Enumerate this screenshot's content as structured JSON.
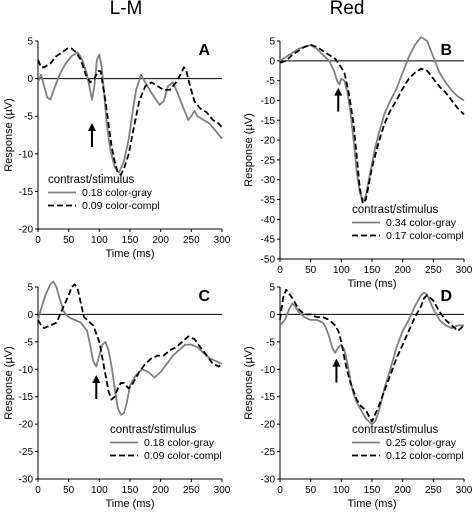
{
  "column_titles": [
    "L-M",
    "Red"
  ],
  "chart_data": [
    {
      "type": "line",
      "panel_label": "A",
      "xlabel": "Time (ms)",
      "ylabel": "Response (µV)",
      "xlim": [
        0,
        300
      ],
      "ylim": [
        -20,
        5
      ],
      "xticks": [
        0,
        50,
        100,
        150,
        200,
        250,
        300
      ],
      "yticks": [
        5,
        0,
        -5,
        -10,
        -15,
        -20
      ],
      "legend_title": "contrast/stimulus",
      "legend_position": "bottom-left",
      "arrow_at": [
        88,
        -5.5
      ],
      "series": [
        {
          "name": "0.18 color-gray",
          "style": "solid",
          "color": "#808080",
          "x": [
            0,
            5,
            10,
            15,
            20,
            28,
            35,
            45,
            55,
            65,
            72,
            80,
            85,
            88,
            92,
            96,
            100,
            104,
            108,
            112,
            118,
            125,
            132,
            140,
            148,
            155,
            160,
            168,
            175,
            182,
            190,
            198,
            205,
            212,
            220,
            228,
            235,
            240,
            245,
            250,
            255,
            260,
            270,
            280,
            290,
            300
          ],
          "y": [
            -0.5,
            0.5,
            -1,
            -2.5,
            -2.8,
            -1,
            0.5,
            2,
            3,
            3.5,
            2.5,
            0.5,
            -1.5,
            -2.8,
            -1,
            2.5,
            3.2,
            1.5,
            -2,
            -6,
            -9.5,
            -11.8,
            -12.5,
            -11,
            -8,
            -4,
            -1.5,
            0.5,
            -0.5,
            -1.5,
            -2.5,
            -3.5,
            -3,
            -1,
            -0.5,
            -2,
            -3.5,
            -4.5,
            -5.5,
            -5,
            -4.3,
            -5,
            -5.5,
            -6,
            -7,
            -8
          ]
        },
        {
          "name": "0.09 color-compl",
          "style": "dashed",
          "color": "#000000",
          "x": [
            0,
            5,
            10,
            20,
            30,
            40,
            48,
            55,
            62,
            70,
            78,
            85,
            92,
            98,
            102,
            106,
            110,
            115,
            120,
            125,
            130,
            135,
            140,
            148,
            155,
            165,
            175,
            185,
            195,
            205,
            215,
            225,
            232,
            238,
            242,
            248,
            255,
            265,
            275,
            285,
            295,
            300
          ],
          "y": [
            2.5,
            1.5,
            1.5,
            2,
            3,
            3.5,
            4,
            4,
            3.5,
            2.5,
            0.5,
            -0.5,
            0,
            1,
            1,
            -1,
            -3,
            -6,
            -9,
            -11,
            -12.5,
            -12.8,
            -12,
            -10,
            -7,
            -3,
            -1,
            -0.5,
            -1,
            -1.5,
            -1.5,
            -0.5,
            0.5,
            1.5,
            1,
            -1,
            -3,
            -4,
            -4.5,
            -5.5,
            -6,
            -6.5
          ]
        }
      ]
    },
    {
      "type": "line",
      "panel_label": "B",
      "xlabel": "Time (ms)",
      "ylabel": "Response (µV)",
      "xlim": [
        0,
        300
      ],
      "ylim": [
        -50,
        5
      ],
      "xticks": [
        0,
        50,
        100,
        150,
        200,
        250,
        300
      ],
      "yticks": [
        5,
        0,
        -5,
        -10,
        -15,
        -20,
        -25,
        -30,
        -35,
        -40,
        -45,
        -50
      ],
      "legend_title": "contrast/stimulus",
      "legend_position": "bottom-right",
      "arrow_at": [
        95,
        -6
      ],
      "series": [
        {
          "name": "0.34 color-gray",
          "style": "solid",
          "color": "#808080",
          "x": [
            0,
            10,
            20,
            30,
            40,
            50,
            60,
            70,
            80,
            88,
            93,
            97,
            100,
            105,
            110,
            115,
            120,
            125,
            130,
            135,
            140,
            145,
            150,
            155,
            160,
            170,
            180,
            190,
            200,
            210,
            220,
            230,
            240,
            250,
            260,
            270,
            280,
            290,
            300
          ],
          "y": [
            0,
            1,
            2,
            3,
            3.5,
            4,
            3,
            1.5,
            0,
            -2.5,
            -5,
            -6,
            -4.5,
            -5,
            -8,
            -13,
            -20,
            -28,
            -33,
            -35.5,
            -34,
            -30,
            -26,
            -22,
            -19,
            -13.5,
            -10,
            -7,
            -3,
            1,
            4,
            6,
            5,
            1,
            -3,
            -5.5,
            -7.5,
            -9,
            -10
          ]
        },
        {
          "name": "0.17 color-compl",
          "style": "dashed",
          "color": "#000000",
          "x": [
            0,
            10,
            20,
            30,
            40,
            50,
            60,
            70,
            80,
            90,
            97,
            105,
            112,
            120,
            125,
            130,
            135,
            140,
            145,
            150,
            160,
            170,
            180,
            190,
            200,
            210,
            220,
            230,
            240,
            250,
            260,
            270,
            280,
            290,
            300
          ],
          "y": [
            -0.5,
            0,
            1.5,
            2.5,
            3.5,
            4,
            3.5,
            2.5,
            1.5,
            0.5,
            -1,
            -3,
            -8,
            -16,
            -24,
            -32,
            -36,
            -35,
            -31,
            -27,
            -21,
            -16,
            -12.5,
            -10,
            -7,
            -4.5,
            -3,
            -2,
            -2.5,
            -4.5,
            -6.5,
            -8,
            -10,
            -12,
            -13.5
          ]
        }
      ]
    },
    {
      "type": "line",
      "panel_label": "C",
      "xlabel": "Time (ms)",
      "ylabel": "Response (µV)",
      "xlim": [
        0,
        300
      ],
      "ylim": [
        -30,
        5
      ],
      "xticks": [
        0,
        50,
        100,
        150,
        200,
        250,
        300
      ],
      "yticks": [
        5,
        0,
        -5,
        -10,
        -15,
        -20,
        -25,
        -30
      ],
      "legend_title": "contrast/stimulus",
      "legend_position": "bottom-right",
      "arrow_at": [
        95,
        -10.5
      ],
      "series": [
        {
          "name": "0.18 color-gray",
          "style": "solid",
          "color": "#808080",
          "x": [
            0,
            5,
            12,
            20,
            25,
            30,
            35,
            42,
            50,
            60,
            70,
            80,
            85,
            90,
            95,
            100,
            105,
            110,
            115,
            120,
            125,
            130,
            135,
            140,
            145,
            150,
            160,
            170,
            180,
            190,
            200,
            210,
            220,
            230,
            240,
            250,
            260,
            270,
            280,
            290,
            300
          ],
          "y": [
            -1,
            1,
            3.5,
            5.5,
            6,
            5,
            3,
            0.5,
            -0.5,
            -1,
            -1.5,
            -3,
            -5.5,
            -8.5,
            -9.5,
            -7.5,
            -5.5,
            -5,
            -6.5,
            -9.5,
            -13.5,
            -17,
            -18.3,
            -18,
            -16,
            -13,
            -11,
            -10,
            -10.5,
            -11.5,
            -10.5,
            -9,
            -7.5,
            -6.5,
            -5.5,
            -5.5,
            -6,
            -7,
            -8,
            -8.5,
            -9
          ]
        },
        {
          "name": "0.09 color-compl",
          "style": "dashed",
          "color": "#000000",
          "x": [
            0,
            5,
            10,
            20,
            30,
            40,
            50,
            55,
            60,
            65,
            70,
            75,
            80,
            85,
            90,
            95,
            100,
            105,
            110,
            115,
            120,
            125,
            130,
            135,
            140,
            148,
            155,
            165,
            175,
            185,
            195,
            205,
            215,
            225,
            235,
            245,
            255,
            265,
            275,
            285,
            295,
            300
          ],
          "y": [
            -1,
            -2,
            -2.5,
            -2,
            -1.5,
            1,
            3.5,
            5,
            5.5,
            4.5,
            2,
            -0.5,
            -1,
            -1.5,
            -2,
            -3.5,
            -5,
            -8,
            -11,
            -14,
            -15.5,
            -15,
            -13.5,
            -12.5,
            -12.5,
            -13.5,
            -12.5,
            -10.5,
            -9,
            -8,
            -7.5,
            -7.5,
            -6.5,
            -6,
            -5,
            -4,
            -4.5,
            -6,
            -7.5,
            -9,
            -9.5,
            -9
          ]
        }
      ]
    },
    {
      "type": "line",
      "panel_label": "D",
      "xlabel": "Time (ms)",
      "ylabel": "Response (µV)",
      "xlim": [
        0,
        300
      ],
      "ylim": [
        -30,
        5
      ],
      "xticks": [
        0,
        50,
        100,
        150,
        200,
        250,
        300
      ],
      "yticks": [
        5,
        0,
        -5,
        -10,
        -15,
        -20,
        -25,
        -30
      ],
      "legend_title": "contrast/stimulus",
      "legend_position": "bottom-right",
      "arrow_at": [
        92,
        -7.5
      ],
      "series": [
        {
          "name": "0.25 color-gray",
          "style": "solid",
          "color": "#808080",
          "x": [
            0,
            8,
            15,
            20,
            25,
            30,
            40,
            50,
            60,
            70,
            75,
            80,
            85,
            90,
            95,
            100,
            105,
            110,
            115,
            120,
            125,
            130,
            135,
            140,
            145,
            150,
            155,
            160,
            165,
            170,
            180,
            190,
            200,
            210,
            220,
            230,
            235,
            240,
            250,
            260,
            270,
            280,
            290,
            300
          ],
          "y": [
            -2,
            -1,
            1,
            2,
            1.5,
            0.5,
            -0.5,
            -1,
            -1,
            -1.5,
            -2.5,
            -4,
            -6,
            -7,
            -6,
            -5.5,
            -6.5,
            -9,
            -12,
            -14.5,
            -16,
            -17,
            -18,
            -19,
            -19.5,
            -20,
            -19.5,
            -18,
            -16,
            -13.5,
            -10,
            -6,
            -3,
            -1,
            1.5,
            3.5,
            4,
            3.5,
            1,
            -1,
            -2,
            -2.5,
            -2,
            -2
          ]
        },
        {
          "name": "0.12 color-compl",
          "style": "dashed",
          "color": "#000000",
          "x": [
            0,
            5,
            10,
            20,
            30,
            40,
            50,
            60,
            70,
            80,
            90,
            95,
            100,
            105,
            110,
            115,
            120,
            125,
            130,
            135,
            140,
            145,
            150,
            160,
            170,
            180,
            190,
            200,
            210,
            220,
            230,
            235,
            240,
            250,
            260,
            270,
            280,
            290,
            300
          ],
          "y": [
            -1,
            3,
            4.5,
            3,
            1,
            0,
            0,
            -0.5,
            -0.5,
            -1,
            -2,
            -3,
            -5,
            -8,
            -10.5,
            -12.5,
            -14,
            -15.5,
            -16.5,
            -17,
            -17.5,
            -18.5,
            -19.5,
            -17,
            -14,
            -11,
            -8,
            -5.5,
            -3,
            -0.5,
            1.5,
            3,
            3.5,
            2.5,
            0.5,
            -1,
            -2,
            -3,
            -2
          ]
        }
      ]
    }
  ]
}
